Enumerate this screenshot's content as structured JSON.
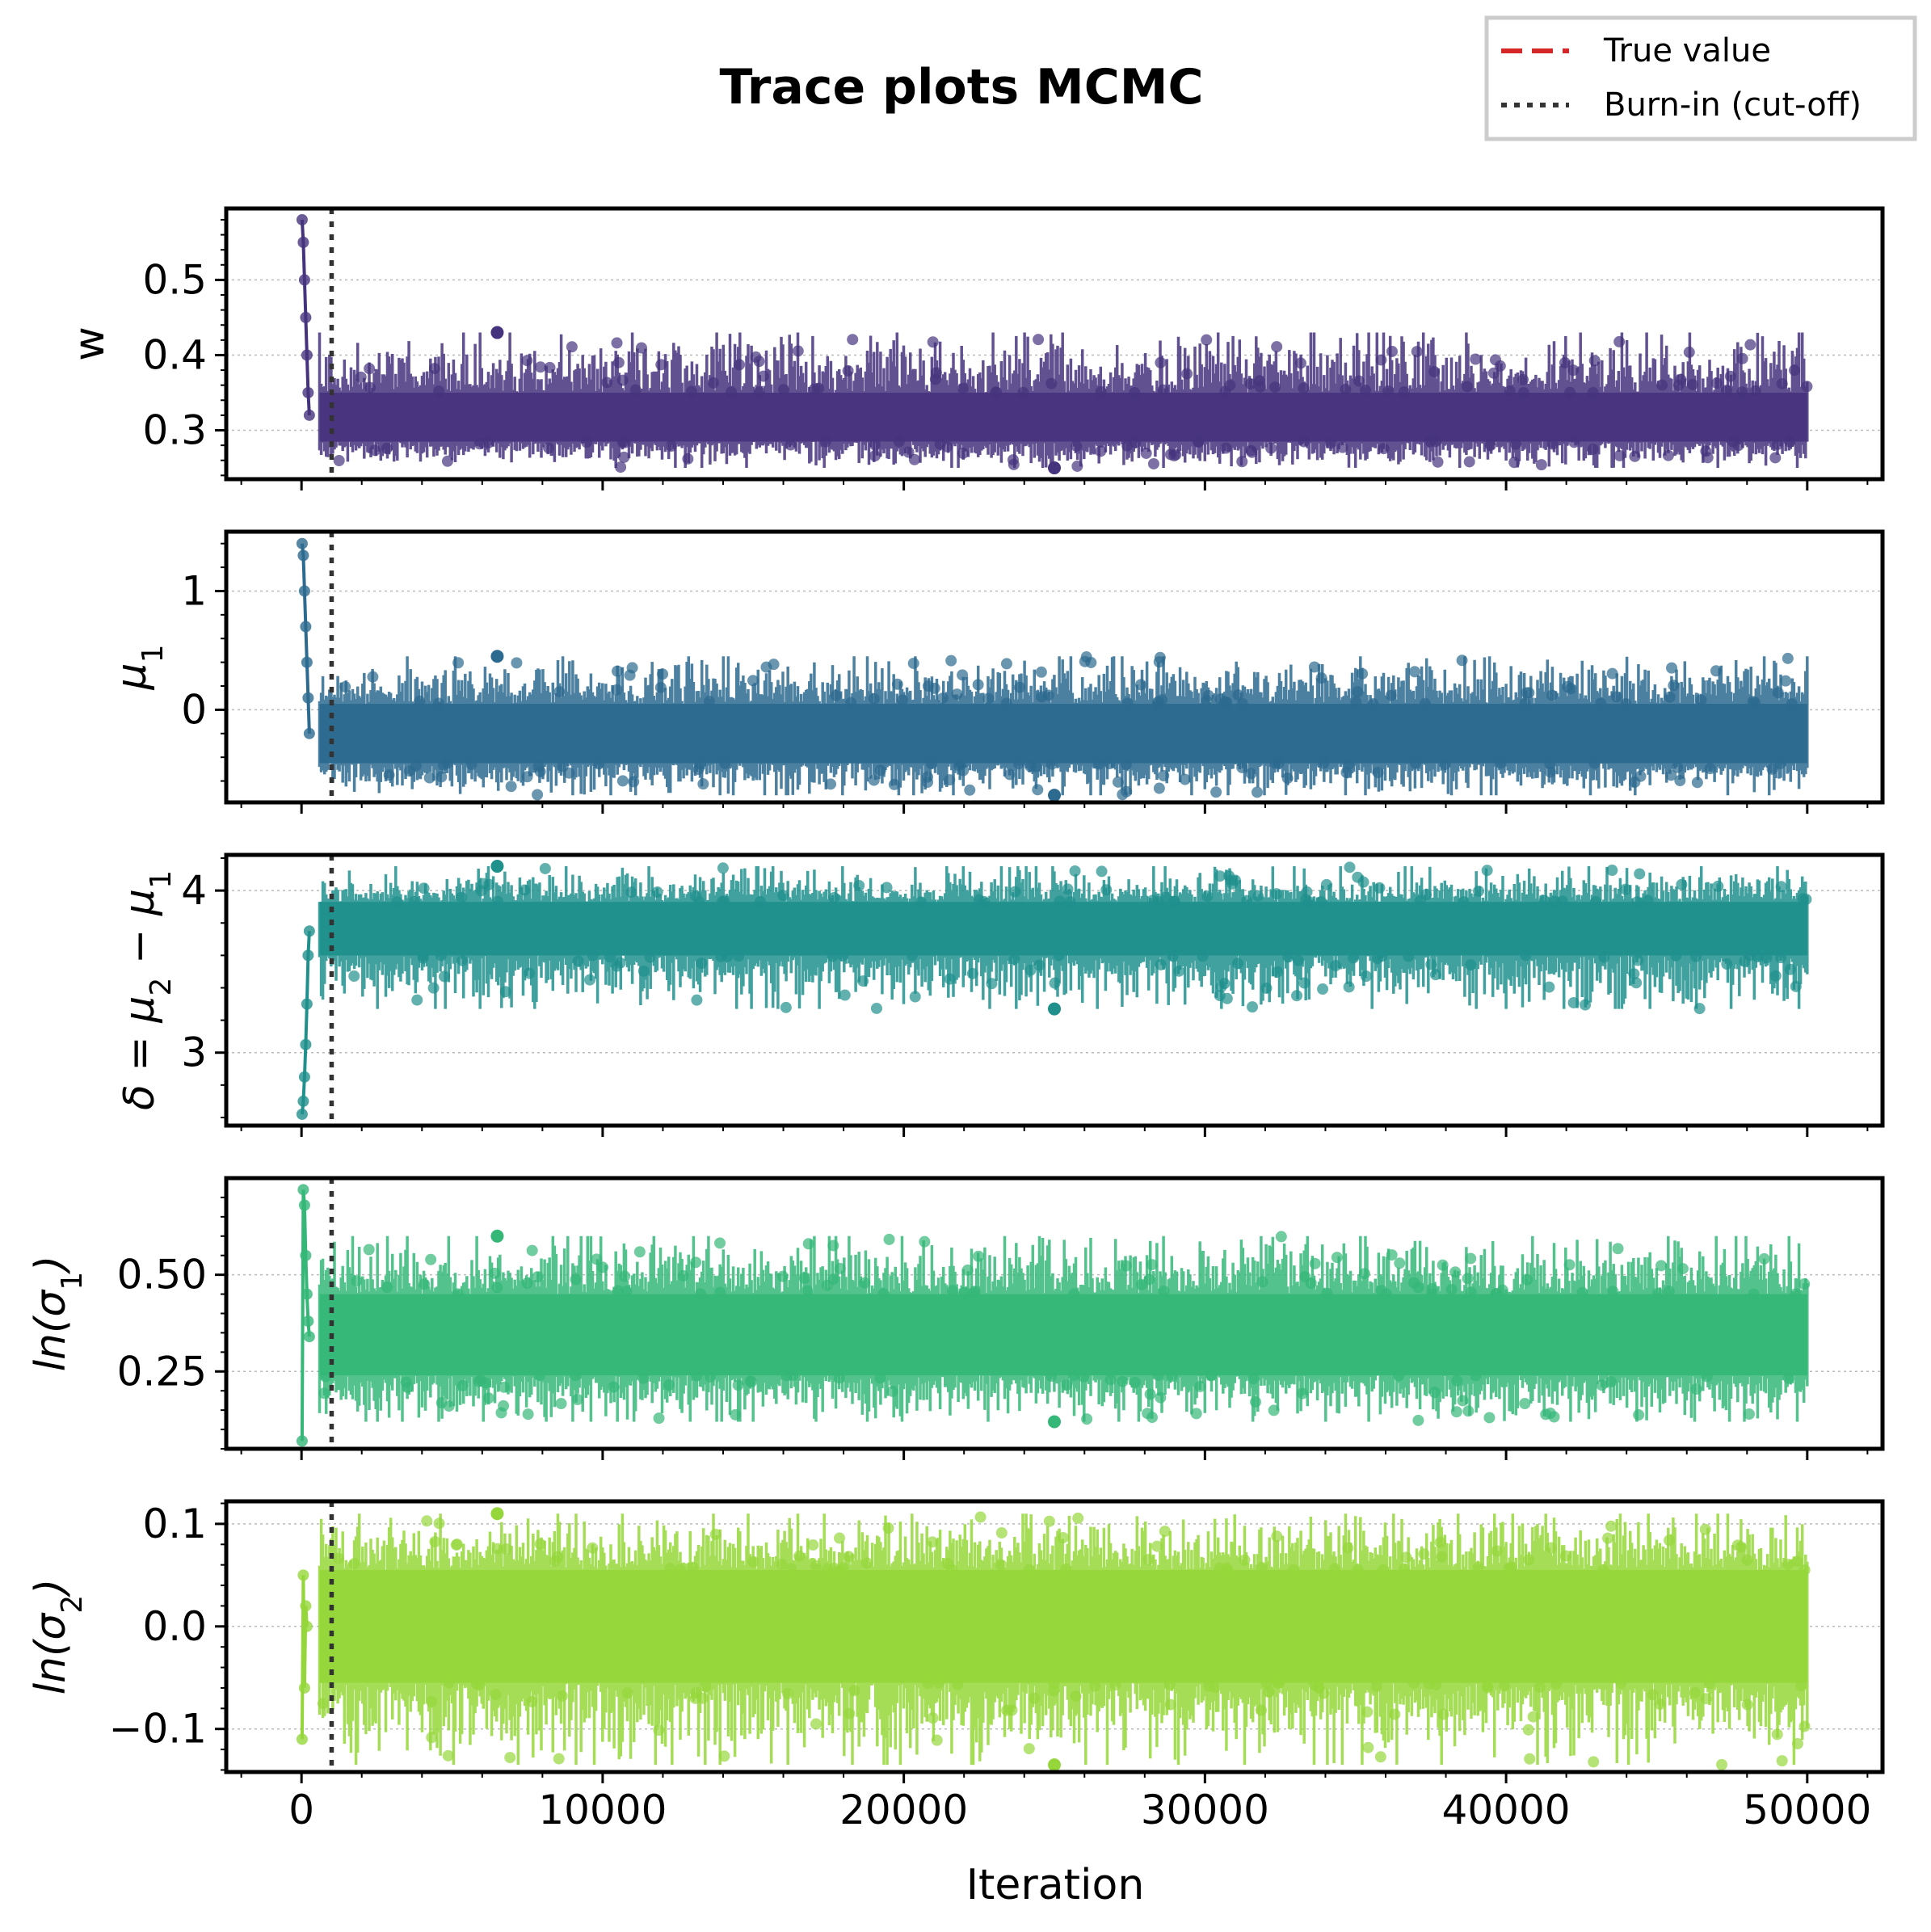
{
  "figure": {
    "title": "Trace plots MCMC",
    "legend": {
      "placement": "top-right",
      "entries": [
        {
          "label": "True value",
          "style": "dashed",
          "color": "#d62728"
        },
        {
          "label": "Burn-in (cut-off)",
          "style": "dotted",
          "color": "#333333"
        }
      ]
    }
  },
  "chart_data": {
    "type": "line",
    "xlabel": "Iteration",
    "xlim": [
      -2500,
      52500
    ],
    "xticks": [
      0,
      10000,
      20000,
      30000,
      40000,
      50000
    ],
    "xtick_labels": [
      "0",
      "10000",
      "20000",
      "30000",
      "40000",
      "50000"
    ],
    "burn_in": 1000,
    "iterations": 50000,
    "grid": "horizontal dotted",
    "panels": [
      {
        "ylabel": "w",
        "ylabel_parts": {
          "main": "w",
          "sub": ""
        },
        "color": "#46337e",
        "ylim": [
          0.235,
          0.595
        ],
        "yticks": [
          0.3,
          0.4,
          0.5
        ],
        "ytick_labels": [
          "0.3",
          "0.4",
          "0.5"
        ],
        "start_values": [
          0.58,
          0.55,
          0.5,
          0.45,
          0.4,
          0.35,
          0.32
        ],
        "stationary": {
          "mean": 0.315,
          "band_low": 0.285,
          "band_high": 0.35,
          "min": 0.25,
          "max": 0.43
        }
      },
      {
        "ylabel": "μ1",
        "ylabel_parts": {
          "main": "μ",
          "sub": "1"
        },
        "color": "#2c6a8f",
        "ylim": [
          -0.78,
          1.5
        ],
        "yticks": [
          0,
          1
        ],
        "ytick_labels": [
          "0",
          "1"
        ],
        "start_values": [
          1.4,
          1.3,
          1.0,
          0.7,
          0.4,
          0.1,
          -0.2
        ],
        "stationary": {
          "mean": -0.2,
          "band_low": -0.45,
          "band_high": 0.05,
          "min": -0.72,
          "max": 0.45
        }
      },
      {
        "ylabel": "δ = μ2 − μ1",
        "ylabel_parts": {
          "main": "δ = μ",
          "sub": "2",
          "tail": " − μ",
          "sub2": "1"
        },
        "color": "#20908d",
        "ylim": [
          2.55,
          4.22
        ],
        "yticks": [
          3,
          4
        ],
        "ytick_labels": [
          "3",
          "4"
        ],
        "start_values": [
          2.62,
          2.7,
          2.85,
          3.05,
          3.3,
          3.6,
          3.75
        ],
        "stationary": {
          "mean": 3.76,
          "band_low": 3.6,
          "band_high": 3.93,
          "min": 3.27,
          "max": 4.15
        }
      },
      {
        "ylabel": "ln(σ1)",
        "ylabel_parts": {
          "main": "ln(σ",
          "sub": "1",
          "tail": ")"
        },
        "color": "#35b778",
        "ylim": [
          0.05,
          0.75
        ],
        "yticks": [
          0.25,
          0.5
        ],
        "ytick_labels": [
          "0.25",
          "0.50"
        ],
        "start_values": [
          0.07,
          0.72,
          0.68,
          0.55,
          0.45,
          0.38,
          0.34
        ],
        "stationary": {
          "mean": 0.34,
          "band_low": 0.24,
          "band_high": 0.45,
          "min": 0.12,
          "max": 0.6
        }
      },
      {
        "ylabel": "ln(σ2)",
        "ylabel_parts": {
          "main": "ln(σ",
          "sub": "2",
          "tail": ")"
        },
        "color": "#95d73a",
        "ylim": [
          -0.142,
          0.122
        ],
        "yticks": [
          -0.1,
          0.0,
          0.1
        ],
        "ytick_labels": [
          "−0.1",
          "0.0",
          "0.1"
        ],
        "start_values": [
          -0.11,
          0.05,
          -0.06,
          0.02,
          0.0
        ],
        "stationary": {
          "mean": 0.0,
          "band_low": -0.055,
          "band_high": 0.055,
          "min": -0.135,
          "max": 0.11
        }
      }
    ]
  }
}
